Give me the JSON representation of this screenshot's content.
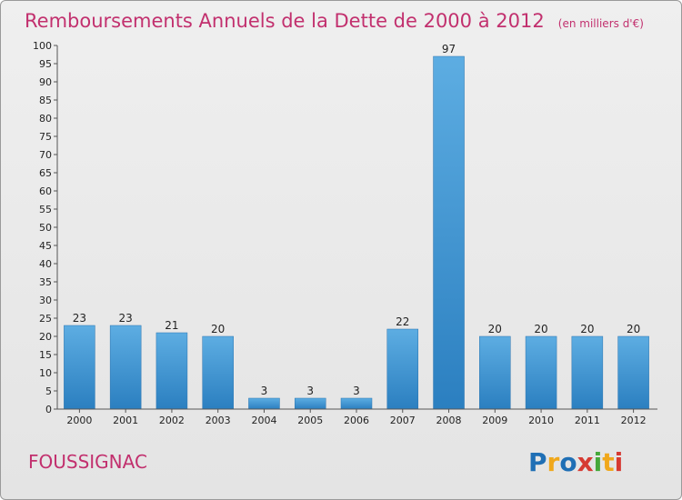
{
  "chart_data": {
    "type": "bar",
    "title": "Remboursements Annuels de la Dette de 2000 à 2012",
    "unit": "(en milliers d'€)",
    "xlabel": "",
    "ylabel": "",
    "categories": [
      "2000",
      "2001",
      "2002",
      "2003",
      "2004",
      "2005",
      "2006",
      "2007",
      "2008",
      "2009",
      "2010",
      "2011",
      "2012"
    ],
    "values": [
      23,
      23,
      21,
      20,
      3,
      3,
      3,
      22,
      97,
      20,
      20,
      20,
      20
    ],
    "ylim": [
      0,
      100
    ],
    "yticks": [
      0,
      5,
      10,
      15,
      20,
      25,
      30,
      35,
      40,
      45,
      50,
      55,
      60,
      65,
      70,
      75,
      80,
      85,
      90,
      95,
      100
    ],
    "grid": false,
    "legend": "none",
    "bar_color_light": "#5dade2",
    "bar_color_dark": "#2b7fc0"
  },
  "footer": {
    "commune": "FOUSSIGNAC",
    "logo_letters": [
      "P",
      "r",
      "o",
      "x",
      "i",
      "t",
      "i"
    ],
    "logo_colors": [
      "#1f6fb5",
      "#f0a81c",
      "#1f6fb5",
      "#d63a32",
      "#46a83a",
      "#f0a81c",
      "#d63a32"
    ]
  }
}
